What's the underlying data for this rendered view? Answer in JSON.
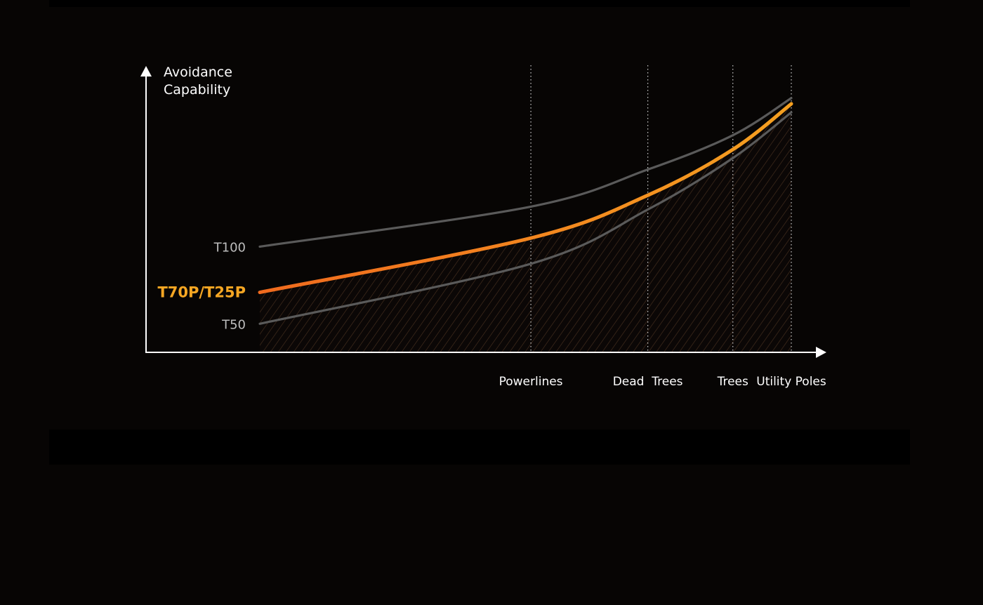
{
  "chart_data": {
    "type": "line",
    "ylabel": "Avoidance\nCapability",
    "ylabel_lines": [
      "Avoidance",
      "Capability"
    ],
    "xlabel": "",
    "xlim": [
      0,
      100
    ],
    "ylim": [
      0,
      100
    ],
    "grid": "vertical dotted lines at category markers",
    "categories": [
      {
        "label": "Powerlines",
        "x": 51
      },
      {
        "label": "Dead  Trees",
        "x": 73
      },
      {
        "label": "Trees",
        "x": 89
      },
      {
        "label": "Utility Poles",
        "x": 100
      }
    ],
    "series": [
      {
        "name": "T100",
        "color": "#5a5a5a",
        "x": [
          0,
          51,
          73,
          89,
          100
        ],
        "y": [
          37,
          51,
          64,
          76,
          89
        ]
      },
      {
        "name": "T70P/T25P",
        "color": "#f5901e",
        "gradient_start": "#f06a1e",
        "highlight": true,
        "x": [
          0,
          51,
          73,
          89,
          100
        ],
        "y": [
          21,
          40,
          55,
          71,
          87
        ]
      },
      {
        "name": "T50",
        "color": "#5a5a5a",
        "x": [
          0,
          51,
          73,
          89,
          100
        ],
        "y": [
          10,
          31,
          50,
          68,
          84
        ]
      }
    ],
    "shaded_area": {
      "under": "T70P/T25P",
      "pattern": "diagonal hatch",
      "color": "#4a3220"
    },
    "legend": "inline labels left of lines"
  },
  "colors": {
    "background": "#070504",
    "axis": "#ffffff",
    "highlight_label": "#f5a623",
    "label": "#bdbdbd"
  }
}
